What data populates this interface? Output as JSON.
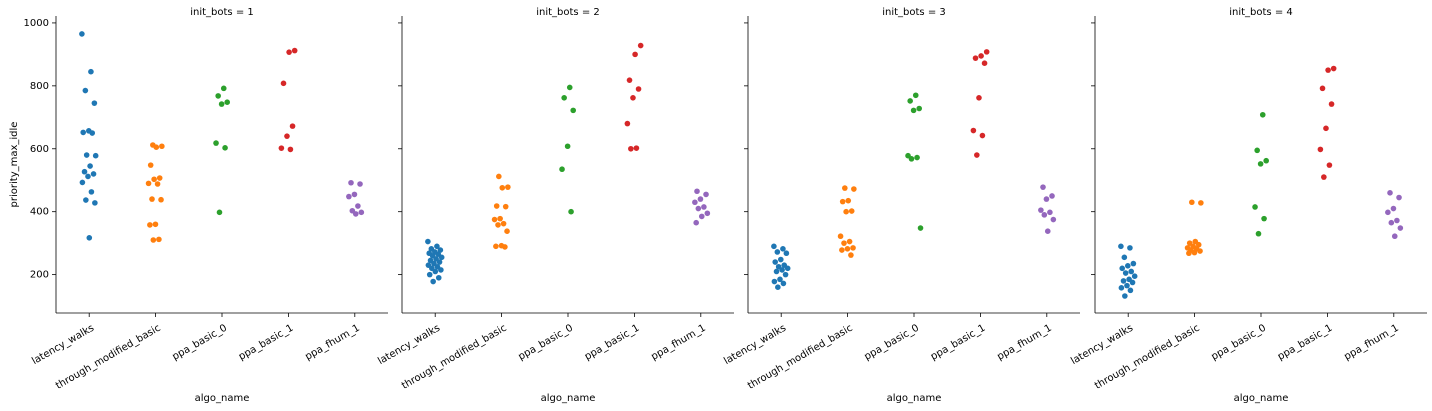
{
  "chart_data": [
    {
      "type": "strip",
      "title": "init_bots = 1",
      "x_label": "algo_name",
      "y_label": "priority_max_idle",
      "categories": [
        "latency_walks",
        "through_modified_basic",
        "ppa_basic_0",
        "ppa_basic_1",
        "ppa_fhum_1"
      ],
      "colors": [
        "#1f77b4",
        "#ff7f0e",
        "#2ca02c",
        "#d62728",
        "#9467bd"
      ],
      "values": [
        [
          965,
          845,
          785,
          745,
          657,
          652,
          650,
          580,
          578,
          545,
          527,
          520,
          512,
          493,
          463,
          437,
          428,
          317
        ],
        [
          612,
          608,
          605,
          548,
          507,
          503,
          490,
          488,
          440,
          438,
          360,
          358,
          312,
          310
        ],
        [
          792,
          768,
          748,
          742,
          618,
          603,
          398
        ],
        [
          912,
          907,
          808,
          672,
          640,
          602,
          598
        ],
        [
          492,
          488,
          455,
          448,
          418,
          403,
          398,
          393
        ]
      ],
      "ylim": [
        78,
        1022
      ],
      "yticks": [
        200,
        400,
        600,
        800,
        1000
      ]
    },
    {
      "type": "strip",
      "title": "init_bots = 2",
      "x_label": "algo_name",
      "categories": [
        "latency_walks",
        "through_modified_basic",
        "ppa_basic_0",
        "ppa_basic_1",
        "ppa_fhum_1"
      ],
      "colors": [
        "#1f77b4",
        "#ff7f0e",
        "#2ca02c",
        "#d62728",
        "#9467bd"
      ],
      "values": [
        [
          305,
          290,
          282,
          278,
          272,
          268,
          265,
          260,
          255,
          250,
          245,
          240,
          235,
          230,
          225,
          220,
          215,
          210,
          200,
          190,
          178
        ],
        [
          512,
          478,
          476,
          418,
          416,
          378,
          375,
          362,
          358,
          338,
          292,
          290,
          288
        ],
        [
          795,
          762,
          722,
          608,
          535,
          400
        ],
        [
          928,
          900,
          818,
          790,
          762,
          680,
          602,
          600
        ],
        [
          465,
          455,
          440,
          430,
          415,
          410,
          395,
          385,
          365
        ]
      ],
      "ylim": [
        78,
        1022
      ],
      "yticks": [
        200,
        400,
        600,
        800,
        1000
      ]
    },
    {
      "type": "strip",
      "title": "init_bots = 3",
      "x_label": "algo_name",
      "categories": [
        "latency_walks",
        "through_modified_basic",
        "ppa_basic_0",
        "ppa_basic_1",
        "ppa_fhum_1"
      ],
      "colors": [
        "#1f77b4",
        "#ff7f0e",
        "#2ca02c",
        "#d62728",
        "#9467bd"
      ],
      "values": [
        [
          290,
          282,
          272,
          268,
          248,
          240,
          230,
          225,
          220,
          215,
          210,
          200,
          185,
          178,
          172,
          160
        ],
        [
          475,
          472,
          435,
          432,
          402,
          400,
          322,
          305,
          300,
          285,
          282,
          278,
          262
        ],
        [
          770,
          752,
          728,
          722,
          578,
          572,
          568,
          348
        ],
        [
          908,
          895,
          888,
          872,
          762,
          658,
          642,
          580
        ],
        [
          478,
          450,
          440,
          405,
          398,
          390,
          375,
          338
        ]
      ],
      "ylim": [
        78,
        1022
      ],
      "yticks": [
        200,
        400,
        600,
        800,
        1000
      ]
    },
    {
      "type": "strip",
      "title": "init_bots = 4",
      "x_label": "algo_name",
      "categories": [
        "latency_walks",
        "through_modified_basic",
        "ppa_basic_0",
        "ppa_basic_1",
        "ppa_fhum_1"
      ],
      "colors": [
        "#1f77b4",
        "#ff7f0e",
        "#2ca02c",
        "#d62728",
        "#9467bd"
      ],
      "values": [
        [
          290,
          285,
          255,
          235,
          228,
          220,
          210,
          205,
          195,
          185,
          180,
          175,
          165,
          158,
          150,
          132
        ],
        [
          430,
          428,
          305,
          300,
          295,
          290,
          285,
          282,
          278,
          275,
          270,
          268
        ],
        [
          708,
          595,
          562,
          552,
          415,
          378,
          330
        ],
        [
          855,
          850,
          792,
          742,
          665,
          598,
          548,
          510
        ],
        [
          460,
          445,
          410,
          398,
          372,
          365,
          348,
          322
        ]
      ],
      "ylim": [
        78,
        1022
      ],
      "yticks": [
        200,
        400,
        600,
        800,
        1000
      ]
    }
  ]
}
